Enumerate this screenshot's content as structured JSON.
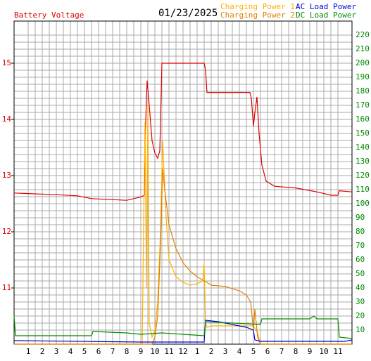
{
  "chart_data": {
    "type": "line",
    "title": "01/23/2025",
    "y_label": "Battery Voltage",
    "grid": true,
    "xlim": [
      0,
      24
    ],
    "xticks": [
      1,
      2,
      3,
      4,
      5,
      6,
      7,
      8,
      9,
      10,
      11,
      12,
      {
        "value": 13,
        "label": "1"
      },
      {
        "value": 14,
        "label": "2"
      },
      {
        "value": 15,
        "label": "3"
      },
      {
        "value": 16,
        "label": "4"
      },
      {
        "value": 17,
        "label": "5"
      },
      {
        "value": 18,
        "label": "6"
      },
      {
        "value": 19,
        "label": "7"
      },
      {
        "value": 20,
        "label": "8"
      },
      {
        "value": 21,
        "label": "9"
      },
      {
        "value": 22,
        "label": "10"
      },
      {
        "value": 23,
        "label": "11"
      }
    ],
    "ylim": [
      10,
      15.75
    ],
    "yticks": [
      11,
      12,
      13,
      14,
      15
    ],
    "y_color": "#dd0000",
    "y2lim": [
      0,
      230
    ],
    "y2ticks": [
      10,
      20,
      30,
      40,
      50,
      60,
      70,
      80,
      90,
      100,
      110,
      120,
      130,
      140,
      150,
      160,
      170,
      180,
      190,
      200,
      210,
      220
    ],
    "y2_color": "#008800",
    "series": [
      {
        "name": "Battery Voltage",
        "color": "#dd0000",
        "axis": "y",
        "x": [
          0,
          1,
          3,
          4.5,
          5.5,
          8,
          9,
          9.25,
          9.3,
          9.4,
          9.45,
          9.6,
          9.8,
          10,
          10.2,
          10.35,
          10.5,
          13.5,
          13.6,
          13.7,
          16.75,
          16.85,
          17,
          17.1,
          17.25,
          17.4,
          17.6,
          17.9,
          18.5,
          20,
          21.5,
          22.5,
          23,
          23.1,
          24
        ],
        "values": [
          12.69,
          12.68,
          12.66,
          12.64,
          12.59,
          12.56,
          12.62,
          12.65,
          13.62,
          14.34,
          14.69,
          14.25,
          13.62,
          13.4,
          13.31,
          13.44,
          15.0,
          15.0,
          14.88,
          14.48,
          14.48,
          14.38,
          13.88,
          14.12,
          14.4,
          13.75,
          13.19,
          12.9,
          12.81,
          12.78,
          12.71,
          12.65,
          12.65,
          12.73,
          12.71
        ]
      },
      {
        "name": "Charging Power 1",
        "color": "#ffb000",
        "axis": "y2",
        "x": [
          0,
          9.1,
          9.2,
          9.3,
          9.4,
          9.5,
          9.6,
          9.8,
          10,
          10.2,
          10.4,
          10.55,
          10.8,
          11,
          11.5,
          12,
          12.5,
          13,
          13.4,
          13.5,
          13.6,
          13.7,
          14,
          15,
          16,
          17,
          17.3,
          17.5,
          24
        ],
        "values": [
          0,
          0,
          85,
          158,
          40,
          170,
          15,
          5,
          10,
          30,
          80,
          145,
          90,
          60,
          48,
          44,
          42,
          43,
          45,
          57,
          15,
          12,
          13,
          13,
          13,
          13,
          8,
          0,
          0
        ]
      },
      {
        "name": "Charging Power 2",
        "color": "#e08000",
        "axis": "y2",
        "x": [
          0,
          9.8,
          10,
          10.2,
          10.4,
          10.55,
          10.7,
          11,
          11.5,
          12,
          12.5,
          13,
          13.5,
          13.7,
          14,
          15,
          16,
          16.5,
          16.8,
          17,
          17.1,
          17.3,
          17.5,
          24
        ],
        "values": [
          0,
          0,
          5,
          20,
          70,
          125,
          110,
          85,
          68,
          58,
          52,
          48,
          45,
          44,
          42,
          41,
          38,
          35,
          30,
          10,
          25,
          5,
          0,
          0
        ]
      },
      {
        "name": "AC Load Power",
        "color": "#0000dd",
        "axis": "y2",
        "x": [
          0,
          9,
          13.5,
          13.6,
          14.5,
          15.5,
          16.5,
          17,
          17.1,
          17.5,
          23.5,
          24
        ],
        "values": [
          2.5,
          1.5,
          1.5,
          17,
          16,
          14,
          12,
          10,
          3,
          2,
          2,
          3
        ]
      },
      {
        "name": "DC Load Power",
        "color": "#008800",
        "axis": "y2",
        "x": [
          0,
          0.1,
          5.5,
          5.6,
          8,
          9,
          10.5,
          12,
          13.5,
          13.6,
          17.5,
          17.6,
          21,
          21.3,
          21.5,
          23,
          23.1,
          24
        ],
        "values": [
          20,
          6,
          6,
          9,
          8,
          7,
          8,
          7,
          6,
          16,
          14,
          18,
          18,
          20,
          18,
          18,
          5,
          4
        ]
      }
    ]
  }
}
